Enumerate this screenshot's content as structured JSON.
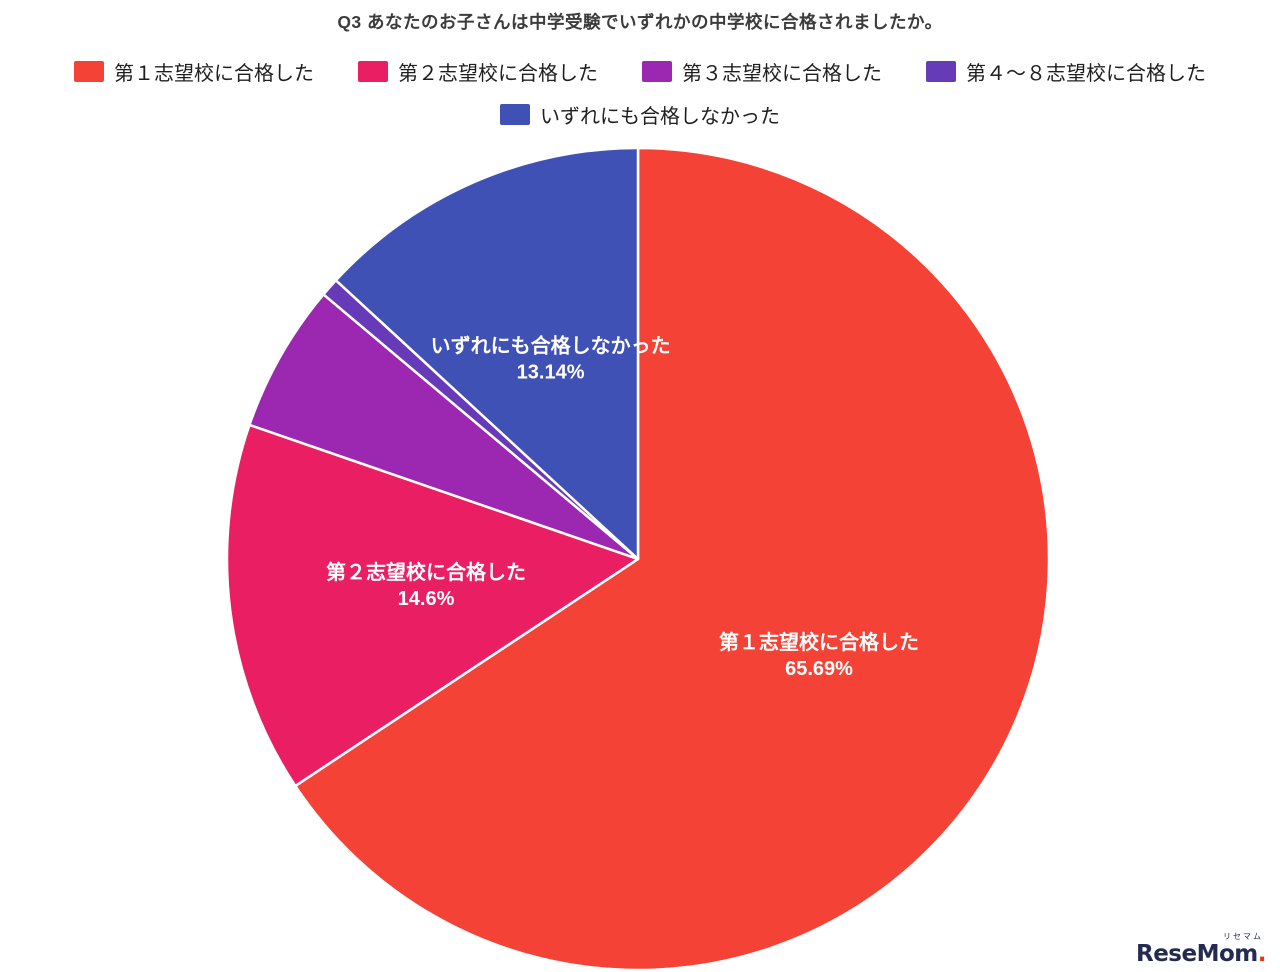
{
  "chart_data": {
    "type": "pie",
    "title": "Q3 あなたのお子さんは中学受験でいずれかの中学校に合格されましたか。",
    "start_angle_deg": 0,
    "direction": "clockwise",
    "legend_position": "top",
    "grid": false,
    "slices": [
      {
        "label": "第１志望校に合格した",
        "value": 65.69,
        "pct_label": "65.69%",
        "color": "#F44336",
        "show_label": true,
        "label_radius": 0.5
      },
      {
        "label": "第２志望校に合格した",
        "value": 14.6,
        "pct_label": "14.6%",
        "color": "#E91E63",
        "show_label": true,
        "label_radius": 0.52
      },
      {
        "label": "第３志望校に合格した",
        "value": 5.84,
        "color": "#9C27B0",
        "show_label": false
      },
      {
        "label": "第４～８志望校に合格した",
        "value": 0.73,
        "color": "#673AB7",
        "show_label": false
      },
      {
        "label": "いずれにも合格しなかった",
        "value": 13.14,
        "pct_label": "13.14%",
        "color": "#3F51B5",
        "show_label": true,
        "label_radius": 0.53
      }
    ],
    "label_text_color": "#FFFFFF",
    "slice_border_color": "#FFFFFF"
  },
  "footer": {
    "logo_ruby": "リセマム",
    "logo_text": "ReseMom",
    "logo_dot": ".",
    "logo_color": "#252A52",
    "logo_dot_color": "#E8380D"
  }
}
